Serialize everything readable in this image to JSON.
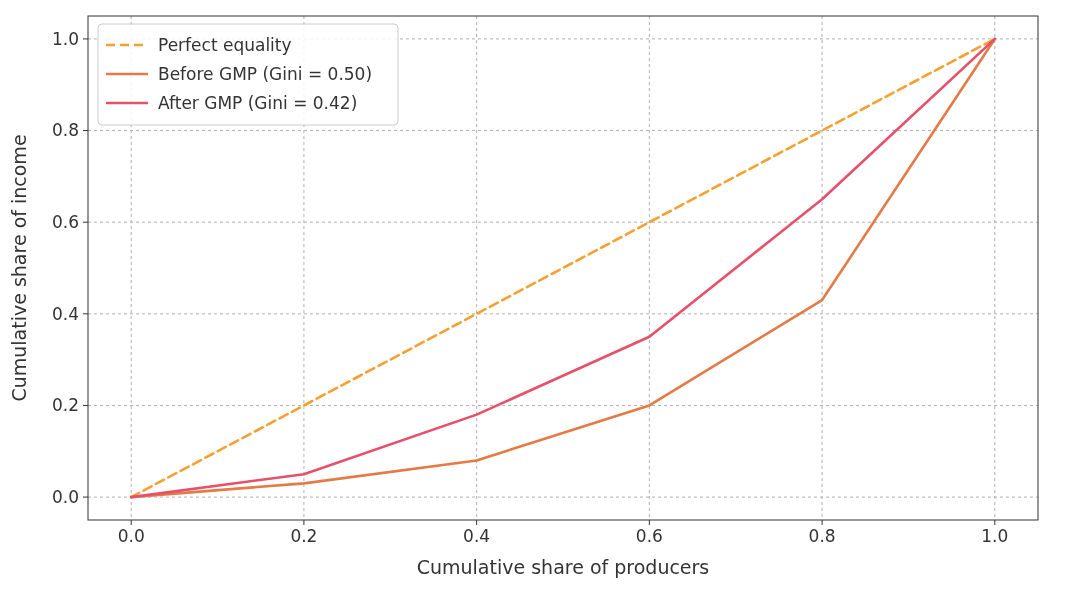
{
  "chart_data": {
    "type": "line",
    "xlabel": "Cumulative share of producers",
    "ylabel": "Cumulative share of income",
    "x": [
      0,
      0.2,
      0.4,
      0.6,
      0.8,
      1.0
    ],
    "series": [
      {
        "name": "Perfect equality",
        "color": "#f5a030",
        "values": [
          0,
          0.2,
          0.4,
          0.6,
          0.8,
          1.0
        ],
        "line_style": "dashed"
      },
      {
        "name": "Before GMP (Gini = 0.50)",
        "color": "#e47a45",
        "values": [
          0,
          0.03,
          0.08,
          0.2,
          0.43,
          1.0
        ]
      },
      {
        "name": "After GMP (Gini = 0.42)",
        "color": "#e5506b",
        "values": [
          0,
          0.05,
          0.18,
          0.35,
          0.65,
          1.0
        ]
      }
    ],
    "xlim": [
      -0.05,
      1.05
    ],
    "ylim": [
      -0.05,
      1.05
    ],
    "xticks": [
      {
        "value": 0,
        "label": "0.0"
      },
      {
        "value": 0.2,
        "label": "0.2"
      },
      {
        "value": 0.4,
        "label": "0.4"
      },
      {
        "value": 0.6,
        "label": "0.6"
      },
      {
        "value": 0.8,
        "label": "0.8"
      },
      {
        "value": 1.0,
        "label": "1.0"
      }
    ],
    "yticks": [
      {
        "value": 0,
        "label": "0.0"
      },
      {
        "value": 0.2,
        "label": "0.2"
      },
      {
        "value": 0.4,
        "label": "0.4"
      },
      {
        "value": 0.6,
        "label": "0.6"
      },
      {
        "value": 0.8,
        "label": "0.8"
      },
      {
        "value": 1.0,
        "label": "1.0"
      }
    ],
    "grid": true,
    "legend": "top left"
  }
}
